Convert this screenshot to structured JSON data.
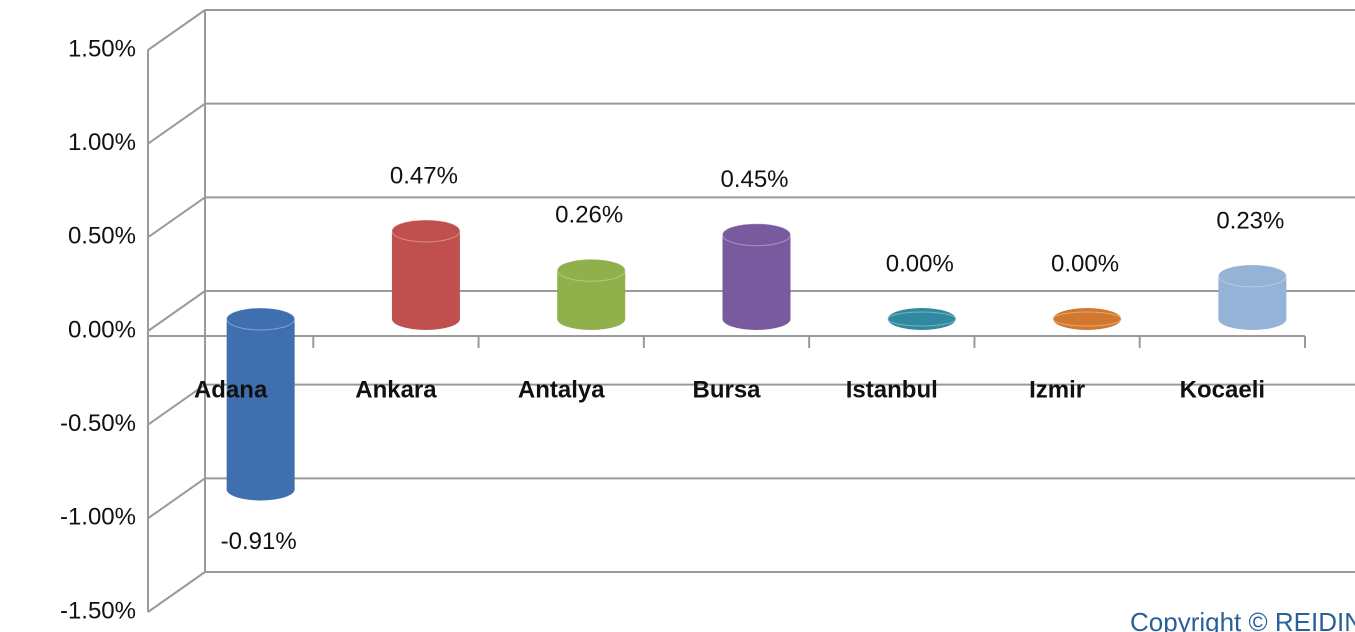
{
  "chart_data": {
    "type": "bar",
    "categories": [
      "Adana",
      "Ankara",
      "Antalya",
      "Bursa",
      "Istanbul",
      "Izmir",
      "Kocaeli"
    ],
    "values": [
      -0.91,
      0.47,
      0.26,
      0.45,
      0,
      0,
      0.23
    ],
    "value_labels": [
      "-0.91%",
      "0.47%",
      "0.26%",
      "0.45%",
      "0.00%",
      "0.00%",
      "0.23%"
    ],
    "colors": [
      "#3f6fae",
      "#c0504d",
      "#8fb04a",
      "#7a5a9e",
      "#2f8aa0",
      "#d2782e",
      "#95b3d7"
    ],
    "ylim": [
      -1.5,
      1.5
    ],
    "yticks": [
      {
        "value": -1.5,
        "label": "-1.50%"
      },
      {
        "value": -1,
        "label": "-1.00%"
      },
      {
        "value": -0.5,
        "label": "-0.50%"
      },
      {
        "value": 0,
        "label": "0.00%"
      },
      {
        "value": 0.5,
        "label": "0.50%"
      },
      {
        "value": 1,
        "label": "1.00%"
      },
      {
        "value": 1.5,
        "label": "1.50%"
      }
    ],
    "grid": true,
    "annotation": "Copyright © REIDIN.com"
  }
}
